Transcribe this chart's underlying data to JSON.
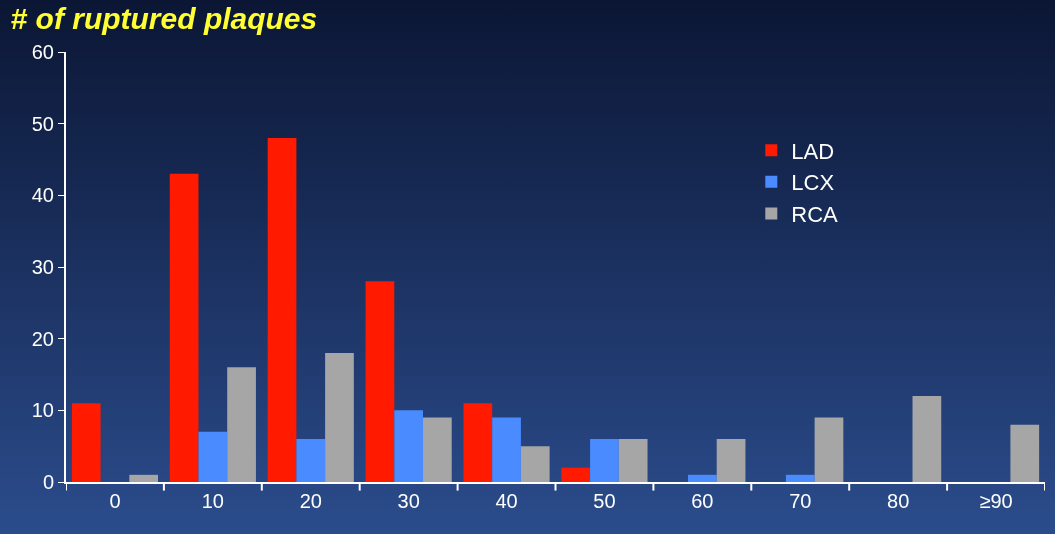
{
  "chart_data": {
    "type": "bar",
    "title": "# of ruptured plaques",
    "categories": [
      "0",
      "10",
      "20",
      "30",
      "40",
      "50",
      "60",
      "70",
      "80",
      "≥90"
    ],
    "series": [
      {
        "name": "LAD",
        "color": "#ff1a00",
        "values": [
          11,
          43,
          48,
          28,
          11,
          2,
          0,
          0,
          0,
          0
        ]
      },
      {
        "name": "LCX",
        "color": "#4a8cff",
        "values": [
          0,
          7,
          6,
          10,
          9,
          6,
          1,
          1,
          0,
          0
        ]
      },
      {
        "name": "RCA",
        "color": "#a6a6a6",
        "values": [
          1,
          16,
          18,
          9,
          5,
          6,
          6,
          9,
          12,
          8
        ]
      }
    ],
    "ylim": [
      0,
      60
    ],
    "yticks": [
      0,
      10,
      20,
      30,
      40,
      50,
      60
    ],
    "grid": false,
    "legend": "top right"
  }
}
